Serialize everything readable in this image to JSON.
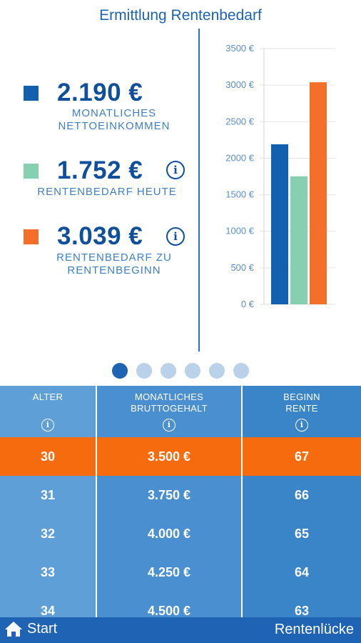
{
  "header": {
    "title": "Ermittlung Rentenbedarf"
  },
  "summary": [
    {
      "amount": "2.190 €",
      "caption": "MONATLICHES\nNETTOEINKOMMEN",
      "color": "#1460b0",
      "has_info": false
    },
    {
      "amount": "1.752 €",
      "caption": "RENTENBEDARF HEUTE",
      "color": "#86cfb0",
      "has_info": true
    },
    {
      "amount": "3.039 €",
      "caption": "RENTENBEDARF ZU\nRENTENBEGINN",
      "color": "#f46f2a",
      "has_info": true
    }
  ],
  "chart_data": {
    "type": "bar",
    "categories": [
      "Monatliches Nettoeinkommen",
      "Rentenbedarf heute",
      "Rentenbedarf zu Rentenbeginn"
    ],
    "values": [
      2190,
      1752,
      3039
    ],
    "colors": [
      "#1460b0",
      "#86cfb0",
      "#f46f2a"
    ],
    "ylim": [
      0,
      3500
    ],
    "yticks": [
      0,
      500,
      1000,
      1500,
      2000,
      2500,
      3000,
      3500
    ],
    "tick_suffix": " €",
    "grid": true
  },
  "pager": {
    "count": 6,
    "active": 0
  },
  "table": {
    "headers": [
      {
        "label": "ALTER",
        "info_icon": "info-icon"
      },
      {
        "label": "MONATLICHES\nBRUTTOGEHALT",
        "info_icon": "info-icon"
      },
      {
        "label": "BEGINN\nRENTE",
        "info_icon": "info-icon"
      }
    ],
    "column_colors": [
      "#5d9fd6",
      "#4a8fcf",
      "#3a84c8"
    ],
    "selected_color": "#f66b0e",
    "selected_index": 0,
    "rows": [
      {
        "alter": "30",
        "gehalt": "3.500 €",
        "rente": "67"
      },
      {
        "alter": "31",
        "gehalt": "3.750 €",
        "rente": "66"
      },
      {
        "alter": "32",
        "gehalt": "4.000 €",
        "rente": "65"
      },
      {
        "alter": "33",
        "gehalt": "4.250 €",
        "rente": "64"
      },
      {
        "alter": "34",
        "gehalt": "4.500 €",
        "rente": "63"
      }
    ]
  },
  "bottom_nav": {
    "start_label": "Start",
    "start_icon": "home-icon",
    "right_label": "Rentenlücke"
  }
}
